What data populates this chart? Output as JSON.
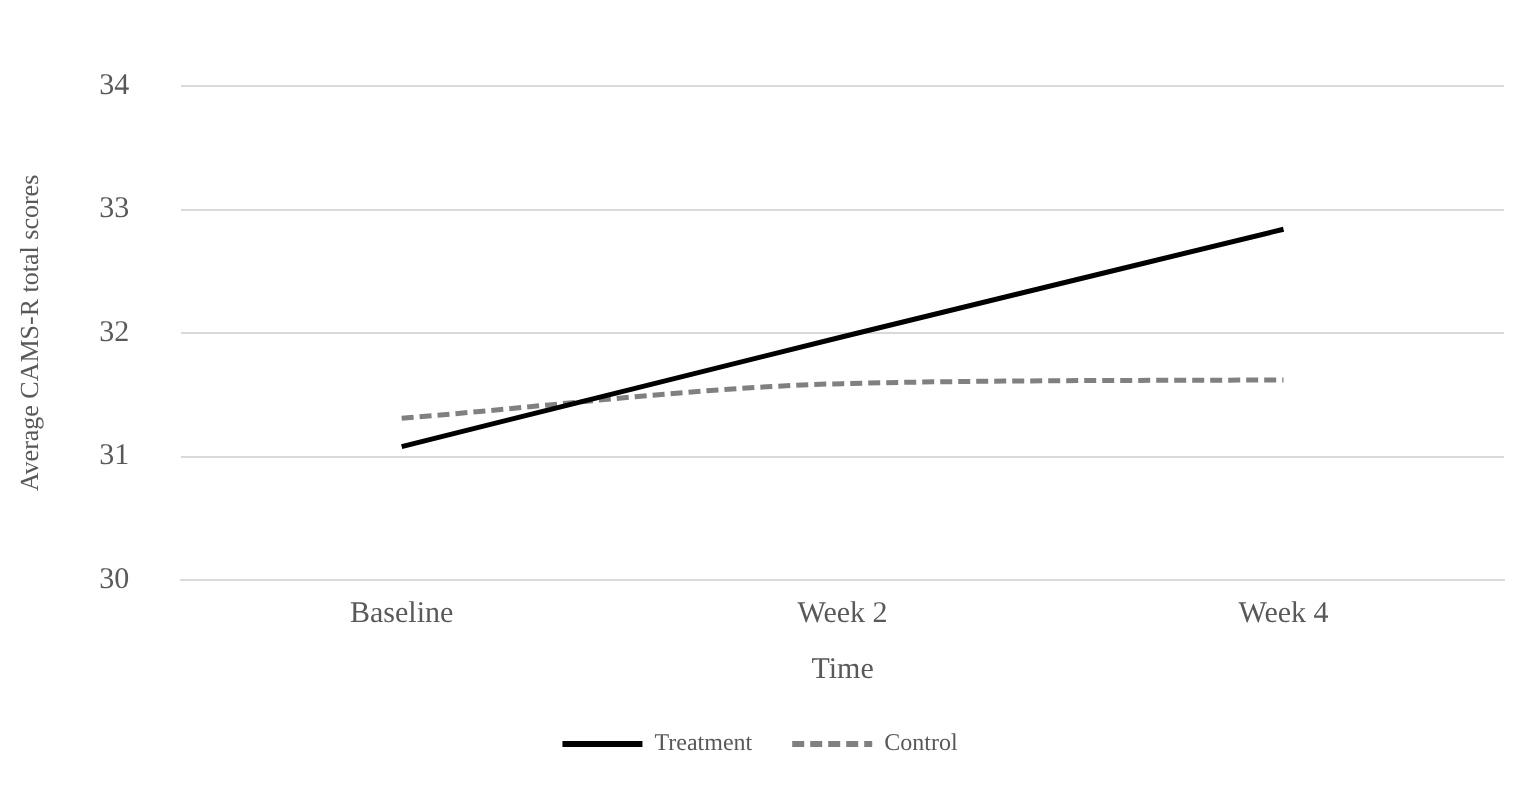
{
  "chart_data": {
    "type": "line",
    "xlabel": "Time",
    "ylabel": "Average CAMS-R total scores",
    "categories": [
      "Baseline",
      "Week 2",
      "Week 4"
    ],
    "series": [
      {
        "name": "Treatment",
        "color": "#000000",
        "line_style": "solid",
        "values": [
          31.08,
          31.97,
          32.84
        ]
      },
      {
        "name": "Control",
        "color": "#808080",
        "line_style": "dashed",
        "values": [
          31.31,
          31.59,
          31.62
        ]
      }
    ],
    "ylim": [
      30,
      34
    ],
    "yticks": [
      30,
      31,
      32,
      33,
      34
    ],
    "grid": "y",
    "legend": "bottom",
    "marker": "none"
  }
}
